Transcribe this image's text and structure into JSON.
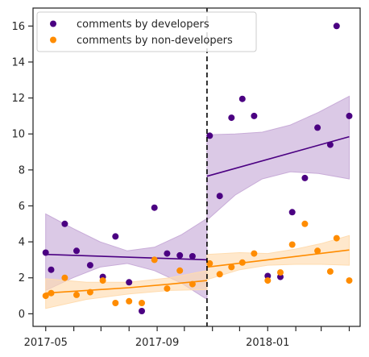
{
  "chart_data": {
    "type": "scatter",
    "title": "",
    "xlabel": "",
    "ylabel": "",
    "x_axis": "date",
    "xlim": [
      "2017-04-17",
      "2018-04-13"
    ],
    "ylim": [
      -0.7,
      17
    ],
    "x_ticks": [
      "2017-05-01",
      "2017-06-01",
      "2017-07-01",
      "2017-08-01",
      "2017-09-01",
      "2017-10-01",
      "2017-11-01",
      "2017-12-01",
      "2018-01-01",
      "2018-02-01",
      "2018-03-01",
      "2018-04-01"
    ],
    "x_tick_labels": [
      "2017-05",
      "",
      "",
      "",
      "2017-09",
      "",
      "",
      "",
      "2018-01",
      "",
      "",
      ""
    ],
    "y_ticks": [
      0,
      2,
      4,
      6,
      8,
      10,
      12,
      14,
      16
    ],
    "y_tick_labels": [
      "0",
      "2",
      "4",
      "6",
      "8",
      "10",
      "12",
      "14",
      "16"
    ],
    "grid": false,
    "legend": "top-left",
    "cutoff_line": {
      "x": "2017-10-26",
      "style": "dashed",
      "color": "#000000"
    },
    "series": [
      {
        "name": "comments by developers",
        "color": "#4b0082",
        "band_color": "#c8acd8",
        "points": [
          {
            "x": "2017-05-01",
            "y": 3.4
          },
          {
            "x": "2017-05-07",
            "y": 2.45
          },
          {
            "x": "2017-05-22",
            "y": 5.0
          },
          {
            "x": "2017-06-04",
            "y": 3.5
          },
          {
            "x": "2017-06-19",
            "y": 2.7
          },
          {
            "x": "2017-07-03",
            "y": 2.05
          },
          {
            "x": "2017-07-17",
            "y": 4.3
          },
          {
            "x": "2017-08-01",
            "y": 1.75
          },
          {
            "x": "2017-08-15",
            "y": 0.15
          },
          {
            "x": "2017-08-29",
            "y": 5.9
          },
          {
            "x": "2017-09-12",
            "y": 3.35
          },
          {
            "x": "2017-09-26",
            "y": 3.25
          },
          {
            "x": "2017-10-10",
            "y": 3.2
          },
          {
            "x": "2017-10-29",
            "y": 9.9
          },
          {
            "x": "2017-11-09",
            "y": 6.55
          },
          {
            "x": "2017-11-22",
            "y": 10.9
          },
          {
            "x": "2017-12-04",
            "y": 11.95
          },
          {
            "x": "2017-12-17",
            "y": 11.0
          },
          {
            "x": "2018-01-01",
            "y": 2.1
          },
          {
            "x": "2018-01-15",
            "y": 2.05
          },
          {
            "x": "2018-01-28",
            "y": 5.65
          },
          {
            "x": "2018-02-11",
            "y": 7.55
          },
          {
            "x": "2018-02-25",
            "y": 10.35
          },
          {
            "x": "2018-03-11",
            "y": 9.4
          },
          {
            "x": "2018-03-18",
            "y": 16.0
          },
          {
            "x": "2018-04-01",
            "y": 11.0
          }
        ],
        "fit_before": {
          "x": [
            "2017-05-01",
            "2017-10-26"
          ],
          "y": [
            3.3,
            3.0
          ]
        },
        "band_before": {
          "x": [
            "2017-05-01",
            "2017-05-31",
            "2017-06-30",
            "2017-07-30",
            "2017-08-29",
            "2017-09-28",
            "2017-10-26"
          ],
          "lower": [
            1.3,
            2.0,
            2.6,
            2.8,
            2.4,
            1.7,
            0.8
          ],
          "upper": [
            5.55,
            4.75,
            4.0,
            3.5,
            3.7,
            4.4,
            5.3
          ]
        },
        "fit_after": {
          "x": [
            "2017-10-26",
            "2018-04-01"
          ],
          "y": [
            7.65,
            9.85
          ]
        },
        "band_after": {
          "x": [
            "2017-10-26",
            "2017-11-26",
            "2017-12-26",
            "2018-01-26",
            "2018-02-26",
            "2018-04-01"
          ],
          "lower": [
            5.2,
            6.6,
            7.5,
            7.9,
            7.8,
            7.5
          ],
          "upper": [
            9.95,
            10.0,
            10.1,
            10.5,
            11.2,
            12.1
          ]
        }
      },
      {
        "name": "comments by non-developers",
        "color": "#ff8c00",
        "band_color": "#ffdcb0",
        "points": [
          {
            "x": "2017-05-01",
            "y": 1.0
          },
          {
            "x": "2017-05-07",
            "y": 1.15
          },
          {
            "x": "2017-05-22",
            "y": 2.0
          },
          {
            "x": "2017-06-04",
            "y": 1.05
          },
          {
            "x": "2017-06-19",
            "y": 1.2
          },
          {
            "x": "2017-07-03",
            "y": 1.85
          },
          {
            "x": "2017-07-17",
            "y": 0.6
          },
          {
            "x": "2017-08-01",
            "y": 0.7
          },
          {
            "x": "2017-08-15",
            "y": 0.6
          },
          {
            "x": "2017-08-29",
            "y": 3.0
          },
          {
            "x": "2017-09-12",
            "y": 1.4
          },
          {
            "x": "2017-09-26",
            "y": 2.4
          },
          {
            "x": "2017-10-10",
            "y": 1.65
          },
          {
            "x": "2017-10-29",
            "y": 2.8
          },
          {
            "x": "2017-11-09",
            "y": 2.2
          },
          {
            "x": "2017-11-22",
            "y": 2.6
          },
          {
            "x": "2017-12-04",
            "y": 2.85
          },
          {
            "x": "2017-12-17",
            "y": 3.35
          },
          {
            "x": "2018-01-01",
            "y": 1.85
          },
          {
            "x": "2018-01-15",
            "y": 2.3
          },
          {
            "x": "2018-01-28",
            "y": 3.85
          },
          {
            "x": "2018-02-11",
            "y": 5.0
          },
          {
            "x": "2018-02-25",
            "y": 3.5
          },
          {
            "x": "2018-03-11",
            "y": 2.35
          },
          {
            "x": "2018-03-18",
            "y": 4.2
          },
          {
            "x": "2018-04-01",
            "y": 1.85
          }
        ],
        "fit_before": {
          "x": [
            "2017-05-01",
            "2017-06-15",
            "2017-08-01",
            "2017-09-15",
            "2017-10-26"
          ],
          "y": [
            1.15,
            1.3,
            1.45,
            1.65,
            1.85
          ]
        },
        "band_before": {
          "x": [
            "2017-05-01",
            "2017-06-15",
            "2017-08-01",
            "2017-09-15",
            "2017-10-26"
          ],
          "lower": [
            0.3,
            0.8,
            1.1,
            1.3,
            1.35
          ],
          "upper": [
            1.95,
            1.75,
            1.75,
            2.0,
            2.4
          ]
        },
        "fit_after": {
          "x": [
            "2017-10-26",
            "2018-01-01",
            "2018-04-01"
          ],
          "y": [
            2.6,
            3.0,
            3.55
          ]
        },
        "band_after": {
          "x": [
            "2017-10-26",
            "2017-12-01",
            "2018-01-01",
            "2018-02-01",
            "2018-03-01",
            "2018-04-01"
          ],
          "lower": [
            1.9,
            2.45,
            2.7,
            2.75,
            2.75,
            2.7
          ],
          "upper": [
            3.3,
            3.4,
            3.35,
            3.6,
            3.9,
            4.35
          ]
        }
      }
    ]
  }
}
